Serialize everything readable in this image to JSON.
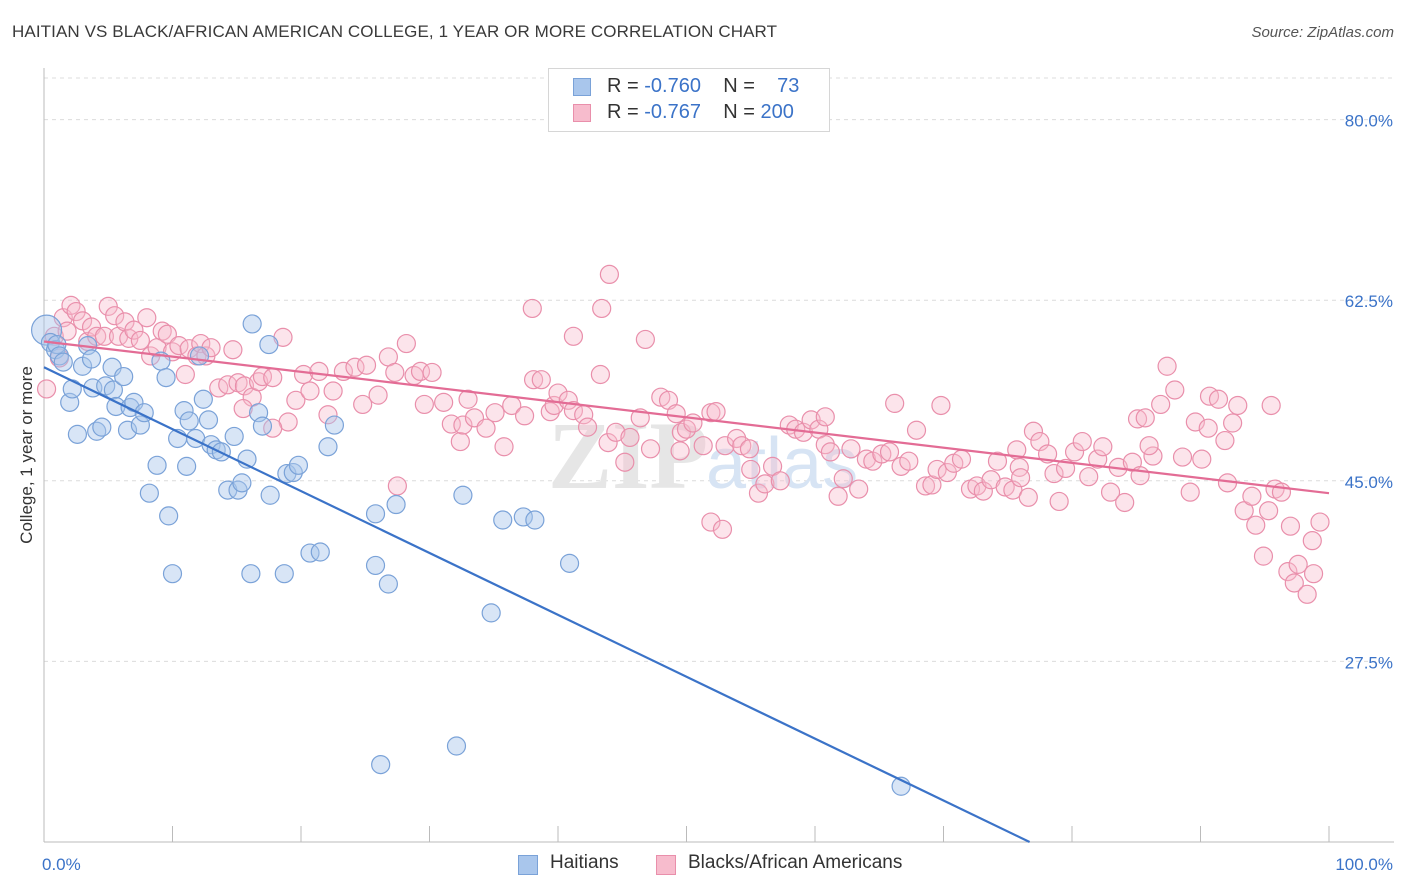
{
  "header": {
    "title": "HAITIAN VS BLACK/AFRICAN AMERICAN COLLEGE, 1 YEAR OR MORE CORRELATION CHART",
    "source": "Source: ZipAtlas.com"
  },
  "legend": {
    "rows": [
      {
        "r_label": "R =",
        "r_value": "-0.760",
        "n_label": "N =",
        "n_value": "73",
        "color": "#a9c6ec",
        "stroke": "#7aa2d8"
      },
      {
        "r_label": "R =",
        "r_value": "-0.767",
        "n_label": "N =",
        "n_value": "200",
        "color": "#f7bccd",
        "stroke": "#e98fab"
      }
    ]
  },
  "bottom_legend": {
    "items": [
      {
        "label": "Haitians",
        "color": "#a9c6ec",
        "stroke": "#7aa2d8"
      },
      {
        "label": "Blacks/African Americans",
        "color": "#f7bccd",
        "stroke": "#e98fab"
      }
    ]
  },
  "watermark": {
    "zip": "ZIP",
    "atlas": "atlas"
  },
  "chart_data": {
    "type": "scatter",
    "title": "HAITIAN VS BLACK/AFRICAN AMERICAN COLLEGE, 1 YEAR OR MORE CORRELATION CHART",
    "xlabel": "",
    "ylabel": "College, 1 year or more",
    "xlim": [
      0,
      100
    ],
    "ylim": [
      10,
      85
    ],
    "x_tick_labels": [
      "0.0%",
      "100.0%"
    ],
    "y_ticks": [
      27.5,
      45.0,
      62.5,
      80.0
    ],
    "y_tick_labels": [
      "27.5%",
      "45.0%",
      "62.5%",
      "80.0%"
    ],
    "grid": true,
    "colors": {
      "haitians": "#3b73c8",
      "blacks": "#e36c95",
      "axis_text": "#3b73c8"
    },
    "series": [
      {
        "name": "Haitians",
        "r": -0.76,
        "n": 73,
        "trend": {
          "x0": 0.0,
          "y0": 56.0,
          "x1": 76.7,
          "y1": 10.0
        },
        "points": [
          [
            0.2,
            59.6
          ],
          [
            0.5,
            58.4
          ],
          [
            0.9,
            57.7
          ],
          [
            1.0,
            58.2
          ],
          [
            1.2,
            57.1
          ],
          [
            1.5,
            56.5
          ],
          [
            2.0,
            52.6
          ],
          [
            2.2,
            53.9
          ],
          [
            2.6,
            49.5
          ],
          [
            3.0,
            56.1
          ],
          [
            3.4,
            58.1
          ],
          [
            3.7,
            56.8
          ],
          [
            3.8,
            54.0
          ],
          [
            4.1,
            49.8
          ],
          [
            4.5,
            50.2
          ],
          [
            4.8,
            54.2
          ],
          [
            5.3,
            56.0
          ],
          [
            5.4,
            53.8
          ],
          [
            5.6,
            52.2
          ],
          [
            6.2,
            55.1
          ],
          [
            6.5,
            49.9
          ],
          [
            6.7,
            52.1
          ],
          [
            7.0,
            52.6
          ],
          [
            7.5,
            50.4
          ],
          [
            7.8,
            51.6
          ],
          [
            8.2,
            43.8
          ],
          [
            8.8,
            46.5
          ],
          [
            9.1,
            56.6
          ],
          [
            9.5,
            55.0
          ],
          [
            9.7,
            41.6
          ],
          [
            10.0,
            36.0
          ],
          [
            10.4,
            49.1
          ],
          [
            10.9,
            51.8
          ],
          [
            11.1,
            46.4
          ],
          [
            11.3,
            50.8
          ],
          [
            11.8,
            49.1
          ],
          [
            12.1,
            57.1
          ],
          [
            12.4,
            52.9
          ],
          [
            12.8,
            50.9
          ],
          [
            13.0,
            48.5
          ],
          [
            13.4,
            48.0
          ],
          [
            13.8,
            47.8
          ],
          [
            14.3,
            44.1
          ],
          [
            14.8,
            49.3
          ],
          [
            15.1,
            44.1
          ],
          [
            15.4,
            44.8
          ],
          [
            15.8,
            47.1
          ],
          [
            16.1,
            36.0
          ],
          [
            16.7,
            51.6
          ],
          [
            17.0,
            50.3
          ],
          [
            17.5,
            58.2
          ],
          [
            17.6,
            43.6
          ],
          [
            18.7,
            36.0
          ],
          [
            18.9,
            45.7
          ],
          [
            19.4,
            45.8
          ],
          [
            19.8,
            46.5
          ],
          [
            20.7,
            38.0
          ],
          [
            21.5,
            38.1
          ],
          [
            22.1,
            48.3
          ],
          [
            22.6,
            50.4
          ],
          [
            25.8,
            41.8
          ],
          [
            25.8,
            36.8
          ],
          [
            26.8,
            35.0
          ],
          [
            27.4,
            42.7
          ],
          [
            32.6,
            43.6
          ],
          [
            35.7,
            41.2
          ],
          [
            37.3,
            41.5
          ],
          [
            38.2,
            41.2
          ],
          [
            40.9,
            37.0
          ],
          [
            34.8,
            32.2
          ],
          [
            26.2,
            17.5
          ],
          [
            32.1,
            19.3
          ],
          [
            66.7,
            15.4
          ],
          [
            16.2,
            60.2
          ]
        ]
      },
      {
        "name": "Blacks/African Americans",
        "r": -0.767,
        "n": 200,
        "trend": {
          "x0": 0.0,
          "y0": 58.5,
          "x1": 100.0,
          "y1": 43.8
        },
        "points": [
          [
            0.2,
            53.9
          ],
          [
            0.8,
            59.0
          ],
          [
            1.2,
            56.9
          ],
          [
            1.5,
            60.8
          ],
          [
            1.8,
            59.5
          ],
          [
            2.1,
            62.0
          ],
          [
            2.5,
            61.4
          ],
          [
            3.0,
            60.5
          ],
          [
            3.4,
            58.5
          ],
          [
            3.7,
            59.9
          ],
          [
            4.1,
            59.0
          ],
          [
            4.7,
            59.0
          ],
          [
            5.0,
            61.9
          ],
          [
            5.5,
            61.0
          ],
          [
            5.8,
            59.0
          ],
          [
            6.3,
            60.4
          ],
          [
            6.6,
            58.8
          ],
          [
            7.0,
            59.6
          ],
          [
            7.5,
            58.6
          ],
          [
            8.0,
            60.8
          ],
          [
            8.3,
            57.1
          ],
          [
            8.8,
            57.9
          ],
          [
            9.2,
            59.5
          ],
          [
            9.6,
            59.2
          ],
          [
            10.0,
            57.5
          ],
          [
            10.5,
            58.1
          ],
          [
            11.0,
            55.3
          ],
          [
            11.3,
            57.8
          ],
          [
            11.9,
            57.1
          ],
          [
            12.2,
            58.3
          ],
          [
            12.6,
            57.1
          ],
          [
            13.0,
            57.9
          ],
          [
            13.6,
            54.0
          ],
          [
            14.3,
            54.3
          ],
          [
            14.7,
            57.7
          ],
          [
            15.1,
            54.5
          ],
          [
            15.6,
            54.2
          ],
          [
            16.2,
            53.1
          ],
          [
            16.7,
            54.6
          ],
          [
            17.0,
            55.1
          ],
          [
            17.8,
            55.0
          ],
          [
            18.6,
            58.9
          ],
          [
            19.0,
            50.7
          ],
          [
            19.6,
            52.8
          ],
          [
            20.2,
            55.3
          ],
          [
            20.7,
            53.7
          ],
          [
            21.4,
            55.6
          ],
          [
            22.1,
            51.4
          ],
          [
            22.5,
            53.7
          ],
          [
            23.3,
            55.6
          ],
          [
            24.2,
            56.0
          ],
          [
            24.8,
            52.4
          ],
          [
            25.1,
            56.2
          ],
          [
            26.0,
            53.3
          ],
          [
            26.8,
            57.0
          ],
          [
            27.3,
            55.5
          ],
          [
            28.2,
            58.3
          ],
          [
            28.8,
            55.2
          ],
          [
            29.3,
            55.6
          ],
          [
            29.6,
            52.4
          ],
          [
            30.2,
            55.5
          ],
          [
            31.1,
            52.6
          ],
          [
            31.7,
            50.5
          ],
          [
            32.4,
            48.8
          ],
          [
            32.6,
            50.4
          ],
          [
            33.0,
            52.9
          ],
          [
            33.5,
            51.1
          ],
          [
            34.4,
            50.1
          ],
          [
            35.1,
            51.6
          ],
          [
            35.8,
            48.3
          ],
          [
            36.4,
            52.3
          ],
          [
            37.4,
            51.3
          ],
          [
            38.1,
            54.8
          ],
          [
            38.7,
            54.8
          ],
          [
            39.4,
            51.7
          ],
          [
            39.7,
            52.3
          ],
          [
            40.0,
            53.5
          ],
          [
            40.8,
            52.8
          ],
          [
            41.2,
            51.8
          ],
          [
            42.0,
            51.4
          ],
          [
            42.3,
            50.2
          ],
          [
            43.3,
            55.3
          ],
          [
            43.9,
            48.7
          ],
          [
            44.5,
            49.7
          ],
          [
            45.2,
            46.8
          ],
          [
            45.6,
            49.2
          ],
          [
            46.4,
            51.1
          ],
          [
            47.2,
            48.1
          ],
          [
            48.0,
            53.1
          ],
          [
            48.6,
            52.8
          ],
          [
            49.2,
            51.5
          ],
          [
            49.6,
            49.7
          ],
          [
            50.0,
            50.0
          ],
          [
            50.5,
            50.6
          ],
          [
            51.3,
            48.4
          ],
          [
            51.9,
            51.6
          ],
          [
            52.3,
            51.7
          ],
          [
            53.0,
            48.4
          ],
          [
            53.9,
            49.1
          ],
          [
            54.3,
            48.4
          ],
          [
            55.0,
            46.1
          ],
          [
            55.6,
            43.8
          ],
          [
            56.1,
            44.7
          ],
          [
            56.7,
            46.4
          ],
          [
            57.3,
            45.0
          ],
          [
            58.0,
            50.4
          ],
          [
            58.5,
            50.0
          ],
          [
            59.1,
            49.7
          ],
          [
            59.7,
            50.9
          ],
          [
            60.3,
            50.0
          ],
          [
            60.8,
            48.5
          ],
          [
            61.2,
            47.8
          ],
          [
            61.8,
            43.5
          ],
          [
            62.2,
            45.2
          ],
          [
            62.8,
            48.1
          ],
          [
            63.4,
            44.2
          ],
          [
            64.0,
            47.1
          ],
          [
            64.5,
            46.9
          ],
          [
            65.2,
            47.6
          ],
          [
            65.8,
            47.8
          ],
          [
            66.2,
            52.5
          ],
          [
            66.7,
            46.4
          ],
          [
            67.3,
            46.9
          ],
          [
            67.9,
            49.9
          ],
          [
            68.6,
            44.5
          ],
          [
            69.1,
            44.6
          ],
          [
            69.5,
            46.1
          ],
          [
            70.3,
            45.8
          ],
          [
            70.8,
            46.7
          ],
          [
            71.4,
            47.1
          ],
          [
            72.1,
            44.2
          ],
          [
            72.6,
            44.5
          ],
          [
            73.1,
            44.0
          ],
          [
            73.7,
            45.1
          ],
          [
            74.2,
            46.9
          ],
          [
            74.8,
            44.4
          ],
          [
            75.4,
            44.1
          ],
          [
            75.9,
            46.3
          ],
          [
            76.6,
            43.4
          ],
          [
            77.0,
            49.8
          ],
          [
            77.5,
            48.8
          ],
          [
            78.1,
            47.6
          ],
          [
            78.6,
            45.7
          ],
          [
            79.0,
            43.0
          ],
          [
            79.5,
            46.2
          ],
          [
            80.2,
            47.8
          ],
          [
            80.8,
            48.8
          ],
          [
            81.3,
            45.4
          ],
          [
            82.0,
            47.1
          ],
          [
            82.4,
            48.3
          ],
          [
            83.0,
            43.9
          ],
          [
            83.6,
            46.3
          ],
          [
            84.1,
            42.9
          ],
          [
            84.7,
            46.8
          ],
          [
            85.1,
            51.0
          ],
          [
            85.7,
            51.1
          ],
          [
            86.3,
            47.4
          ],
          [
            86.9,
            52.4
          ],
          [
            87.4,
            56.1
          ],
          [
            88.0,
            53.8
          ],
          [
            88.6,
            47.3
          ],
          [
            89.2,
            43.9
          ],
          [
            89.6,
            50.7
          ],
          [
            90.1,
            47.1
          ],
          [
            90.7,
            53.2
          ],
          [
            91.4,
            52.9
          ],
          [
            91.9,
            48.9
          ],
          [
            92.5,
            50.6
          ],
          [
            92.9,
            52.3
          ],
          [
            93.4,
            42.1
          ],
          [
            94.0,
            43.5
          ],
          [
            94.3,
            40.7
          ],
          [
            94.9,
            37.7
          ],
          [
            95.3,
            42.1
          ],
          [
            95.8,
            44.2
          ],
          [
            96.3,
            43.9
          ],
          [
            96.8,
            36.2
          ],
          [
            97.3,
            35.1
          ],
          [
            97.6,
            36.9
          ],
          [
            98.3,
            34.0
          ],
          [
            98.8,
            36.0
          ],
          [
            99.3,
            41.0
          ],
          [
            41.2,
            59.0
          ],
          [
            54.9,
            48.1
          ],
          [
            60.8,
            51.2
          ],
          [
            69.8,
            52.3
          ],
          [
            75.7,
            48.0
          ],
          [
            86.0,
            48.4
          ],
          [
            90.6,
            50.1
          ],
          [
            95.5,
            52.3
          ],
          [
            43.4,
            61.7
          ],
          [
            44.0,
            65.0
          ],
          [
            46.8,
            58.7
          ],
          [
            38.0,
            61.7
          ],
          [
            49.5,
            47.9
          ],
          [
            51.9,
            41.0
          ],
          [
            52.8,
            40.3
          ],
          [
            27.5,
            44.5
          ],
          [
            15.5,
            52.0
          ],
          [
            17.8,
            50.1
          ],
          [
            76.0,
            45.3
          ],
          [
            85.3,
            45.5
          ],
          [
            92.1,
            44.8
          ],
          [
            97.0,
            40.6
          ],
          [
            98.7,
            39.2
          ]
        ]
      }
    ]
  }
}
